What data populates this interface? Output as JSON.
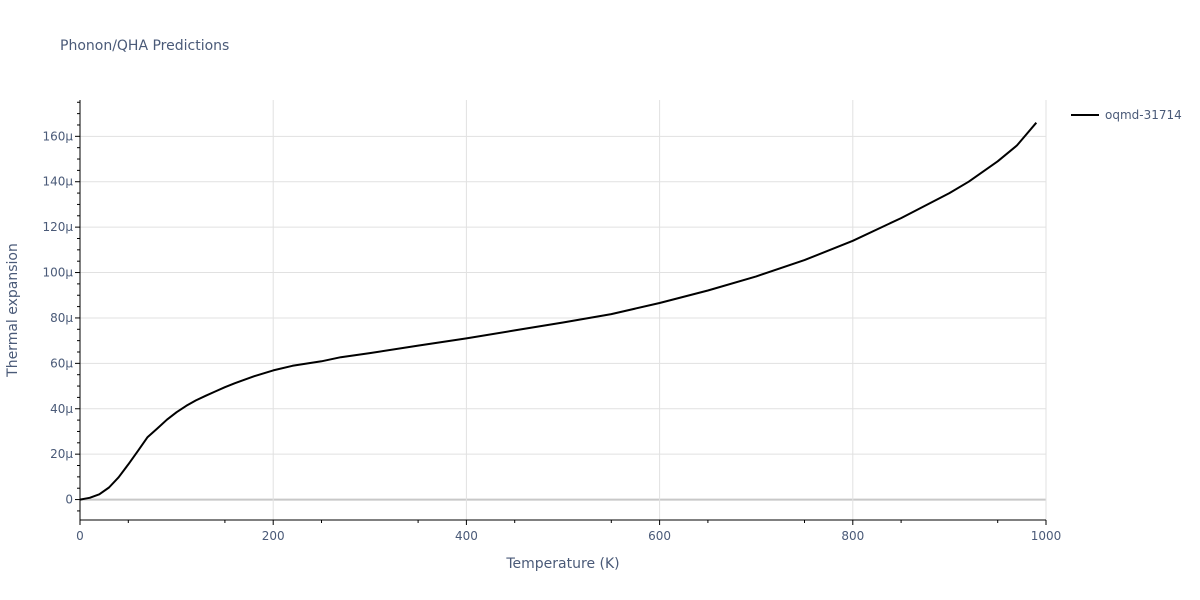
{
  "chart_data": {
    "type": "line",
    "title": "Phonon/QHA Predictions",
    "xlabel": "Temperature (K)",
    "ylabel": "Thermal expansion",
    "xlim": [
      0,
      1000
    ],
    "ylim": [
      -9e-06,
      0.000176
    ],
    "x_ticks": [
      0,
      200,
      400,
      600,
      800,
      1000
    ],
    "x_tick_labels": [
      "0",
      "200",
      "400",
      "600",
      "800",
      "1000"
    ],
    "y_ticks": [
      0,
      2e-05,
      4e-05,
      6e-05,
      8e-05,
      0.0001,
      0.00012,
      0.00014,
      0.00016
    ],
    "y_tick_labels": [
      "0",
      "20μ",
      "40μ",
      "60μ",
      "80μ",
      "100μ",
      "120μ",
      "140μ",
      "160μ"
    ],
    "grid": true,
    "legend_position": "top-right",
    "series": [
      {
        "name": "oqmd-31714",
        "color": "#000000",
        "x": [
          0,
          10,
          20,
          30,
          40,
          50,
          60,
          70,
          80,
          90,
          100,
          110,
          120,
          130,
          140,
          150,
          160,
          180,
          200,
          220,
          250,
          270,
          300,
          350,
          400,
          450,
          500,
          550,
          600,
          650,
          700,
          750,
          800,
          850,
          900,
          920,
          950,
          970,
          990
        ],
        "y": [
          0,
          8e-07,
          2.3e-06,
          5.3e-06,
          9.8e-06,
          1.55e-05,
          2.15e-05,
          2.75e-05,
          3.13e-05,
          3.52e-05,
          3.85e-05,
          4.13e-05,
          4.37e-05,
          4.57e-05,
          4.76e-05,
          4.95e-05,
          5.12e-05,
          5.43e-05,
          5.69e-05,
          5.89e-05,
          6.09e-05,
          6.27e-05,
          6.45e-05,
          6.78e-05,
          7.1e-05,
          7.45e-05,
          7.8e-05,
          8.17e-05,
          8.66e-05,
          9.21e-05,
          9.83e-05,
          0.0001055,
          0.000114,
          0.000124,
          0.000135,
          0.00014,
          0.000149,
          0.000156,
          0.000166
        ]
      }
    ]
  }
}
